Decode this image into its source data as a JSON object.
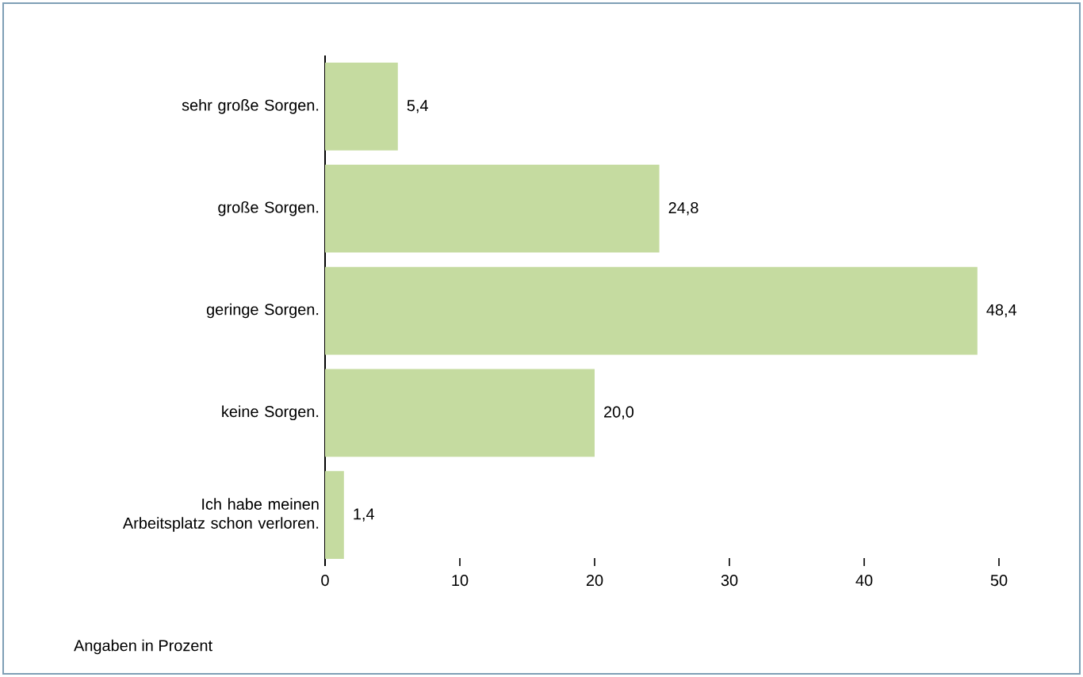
{
  "chart_data": {
    "type": "bar",
    "orientation": "horizontal",
    "categories": [
      "sehr große Sorgen.",
      "große Sorgen.",
      "geringe Sorgen.",
      "keine Sorgen.",
      "Ich habe meinen Arbeitsplatz schon verloren."
    ],
    "values": [
      5.4,
      24.8,
      48.4,
      20.0,
      1.4
    ],
    "value_labels": [
      "5,4",
      "24,8",
      "48,4",
      "20,0",
      "1,4"
    ],
    "color": "#c5dba0",
    "xlim": [
      0,
      50
    ],
    "xticks": [
      0,
      10,
      20,
      30,
      40,
      50
    ],
    "grid": false,
    "annotations": [
      "Angaben in Prozent"
    ]
  }
}
